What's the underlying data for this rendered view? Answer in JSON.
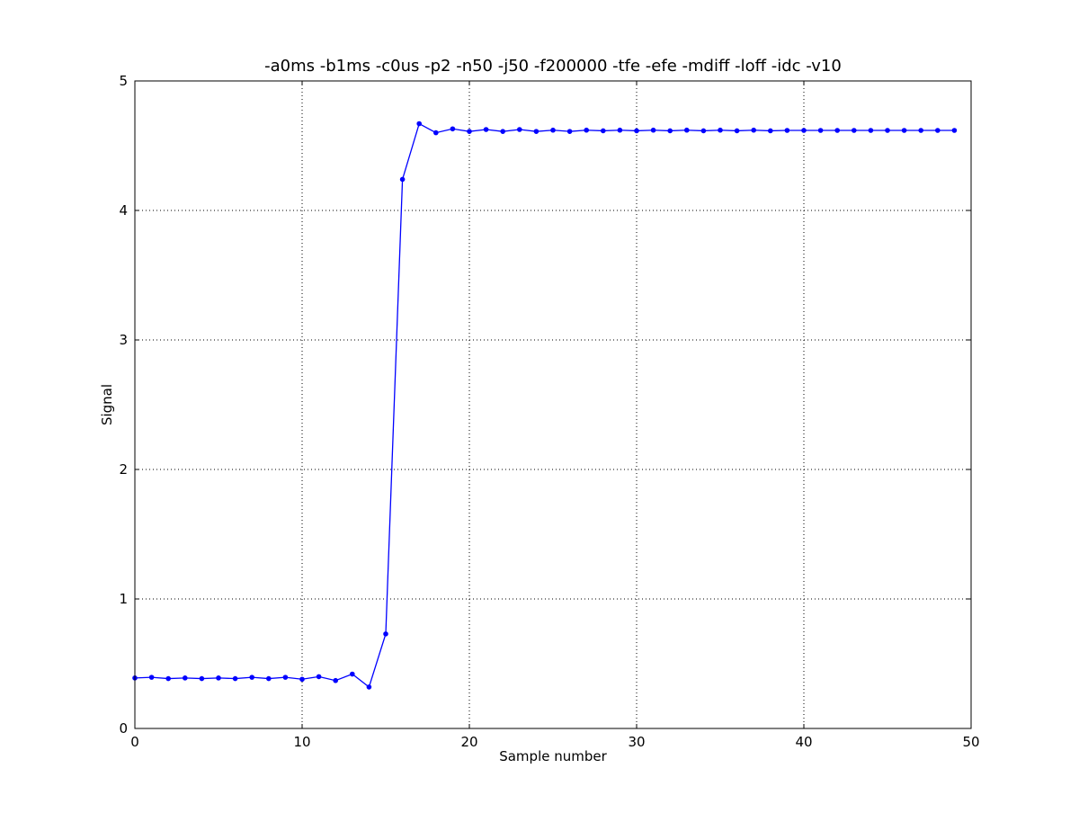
{
  "chart_data": {
    "type": "line",
    "title": "-a0ms -b1ms -c0us -p2 -n50 -j50 -f200000 -tfe -efe -mdiff -loff -idc -v10",
    "xlabel": "Sample number",
    "ylabel": "Signal",
    "xlim": [
      0,
      50
    ],
    "ylim": [
      0,
      5
    ],
    "xticks": [
      0,
      10,
      20,
      30,
      40,
      50
    ],
    "yticks": [
      0,
      1,
      2,
      3,
      4,
      5
    ],
    "grid": true,
    "series": [
      {
        "color": "#0000ff",
        "marker": "dot",
        "x": [
          0,
          1,
          2,
          3,
          4,
          5,
          6,
          7,
          8,
          9,
          10,
          11,
          12,
          13,
          14,
          15,
          16,
          17,
          18,
          19,
          20,
          21,
          22,
          23,
          24,
          25,
          26,
          27,
          28,
          29,
          30,
          31,
          32,
          33,
          34,
          35,
          36,
          37,
          38,
          39,
          40,
          41,
          42,
          43,
          44,
          45,
          46,
          47,
          48,
          49
        ],
        "y": [
          0.39,
          0.395,
          0.385,
          0.39,
          0.385,
          0.39,
          0.385,
          0.395,
          0.385,
          0.395,
          0.38,
          0.4,
          0.37,
          0.42,
          0.32,
          0.73,
          4.24,
          4.67,
          4.6,
          4.63,
          4.61,
          4.625,
          4.61,
          4.625,
          4.61,
          4.62,
          4.61,
          4.62,
          4.615,
          4.62,
          4.615,
          4.62,
          4.615,
          4.62,
          4.615,
          4.62,
          4.615,
          4.62,
          4.615,
          4.618,
          4.618,
          4.618,
          4.618,
          4.618,
          4.618,
          4.618,
          4.618,
          4.618,
          4.618,
          4.618
        ]
      }
    ]
  }
}
